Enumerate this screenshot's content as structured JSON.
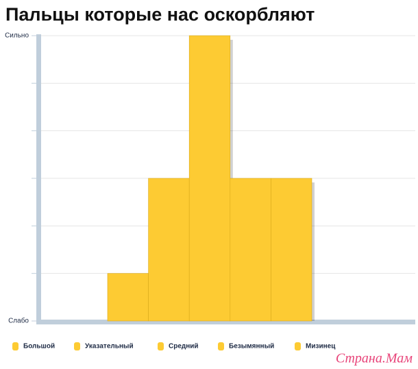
{
  "chart_data": {
    "type": "bar",
    "title": "Пальцы которые нас оскорбляют",
    "series": [
      {
        "name": "Большой",
        "color": "#fdcb33",
        "values": [
          1
        ]
      },
      {
        "name": "Указательный",
        "color": "#fdcb33",
        "values": [
          3
        ]
      },
      {
        "name": "Средний",
        "color": "#fdcb33",
        "values": [
          6
        ]
      },
      {
        "name": "Безымянный",
        "color": "#fdcb33",
        "values": [
          3
        ]
      },
      {
        "name": "Мизинец",
        "color": "#fdcb33",
        "values": [
          3
        ]
      }
    ],
    "ylim": [
      0,
      6
    ],
    "yticks": [
      {
        "value": 0,
        "label": "Слабо"
      },
      {
        "value": 1,
        "label": null
      },
      {
        "value": 2,
        "label": null
      },
      {
        "value": 3,
        "label": null
      },
      {
        "value": 4,
        "label": null
      },
      {
        "value": 5,
        "label": null
      },
      {
        "value": 6,
        "label": "Сильно"
      }
    ],
    "grid": true,
    "legend": "bottom",
    "watermark": "Страна.Мам"
  }
}
